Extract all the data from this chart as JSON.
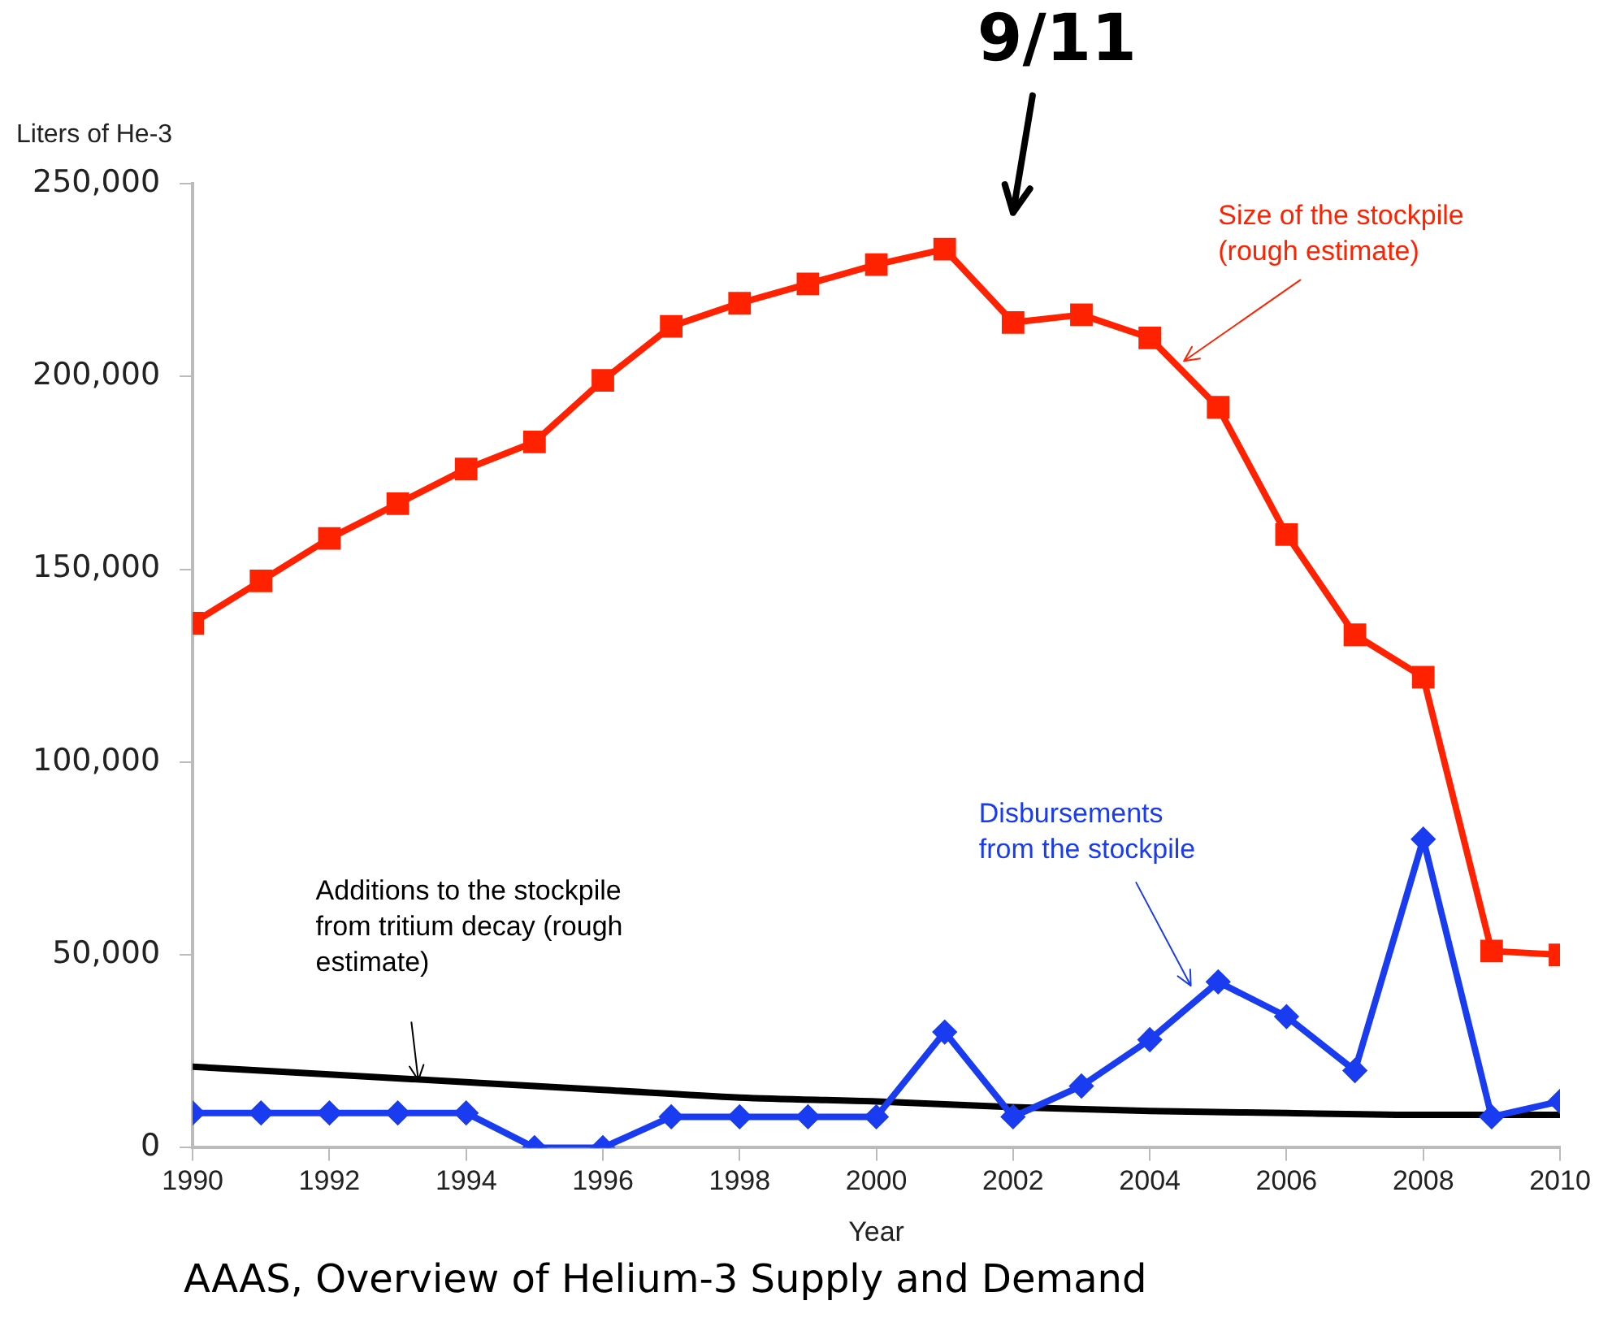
{
  "chart_data": {
    "type": "line",
    "xlabel": "Year",
    "ylabel": "Liters of He-3",
    "x": [
      1990,
      1991,
      1992,
      1993,
      1994,
      1995,
      1996,
      1997,
      1998,
      1999,
      2000,
      2001,
      2002,
      2003,
      2004,
      2005,
      2006,
      2007,
      2008,
      2009,
      2010
    ],
    "series": [
      {
        "name": "Size of the stockpile\n(rough estimate)",
        "color": "#ff2200",
        "marker": "square",
        "values": [
          136000,
          147000,
          158000,
          167000,
          176000,
          183000,
          199000,
          213000,
          219000,
          224000,
          229000,
          233000,
          214000,
          216000,
          210000,
          192000,
          159000,
          133000,
          122000,
          51000,
          50000
        ]
      },
      {
        "name": "Disbursements\nfrom the stockpile",
        "color": "#1a3cf0",
        "marker": "diamond",
        "values": [
          9000,
          9000,
          9000,
          9000,
          9000,
          0,
          0,
          8000,
          8000,
          8000,
          8000,
          30000,
          8000,
          16000,
          28000,
          43000,
          34000,
          20000,
          80000,
          8000,
          12000
        ]
      },
      {
        "name": "Additions to the stockpile\nfrom tritium decay (rough\nestimate)",
        "color": "#000000",
        "marker": "none",
        "x": [
          1990,
          1992,
          1994,
          1996,
          1998,
          2000,
          2002,
          2004,
          2006,
          2008,
          2010
        ],
        "values": [
          21000,
          19000,
          17000,
          15000,
          13000,
          12000,
          10500,
          9500,
          9000,
          8500,
          8500
        ]
      }
    ],
    "xlim": [
      1990,
      2010
    ],
    "xticks": [
      1990,
      1992,
      1994,
      1996,
      1998,
      2000,
      2002,
      2004,
      2006,
      2008,
      2010
    ],
    "ylim": [
      0,
      250000
    ],
    "yticks": [
      0,
      {
        "value": 50000,
        "label": "50,000"
      },
      {
        "value": 100000,
        "label": "100,000"
      },
      {
        "value": 150000,
        "label": "150,000"
      },
      {
        "value": 200000,
        "label": "200,000"
      },
      {
        "value": 250000,
        "label": "250,000"
      }
    ],
    "grid": false,
    "legend": false,
    "annotations": [
      "9/11",
      "AAAS, Overview of Helium-3 Supply and Demand"
    ]
  }
}
